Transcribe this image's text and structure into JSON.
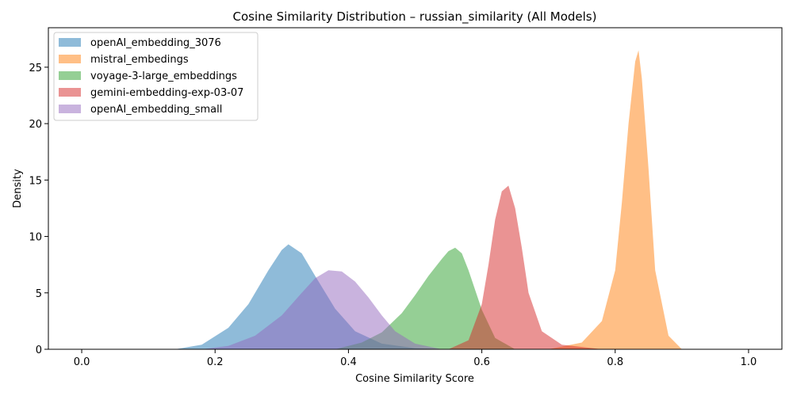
{
  "chart_data": {
    "type": "area",
    "title": "Cosine Similarity Distribution – russian_similarity (All Models)",
    "xlabel": "Cosine Similarity Score",
    "ylabel": "Density",
    "xlim": [
      -0.05,
      1.05
    ],
    "ylim": [
      0,
      28.5
    ],
    "xticks": [
      0.0,
      0.2,
      0.4,
      0.6,
      0.8,
      1.0
    ],
    "xtick_labels": [
      "0.0",
      "0.2",
      "0.4",
      "0.6",
      "0.8",
      "1.0"
    ],
    "yticks": [
      0,
      5,
      10,
      15,
      20,
      25
    ],
    "ytick_labels": [
      "0",
      "5",
      "10",
      "15",
      "20",
      "25"
    ],
    "legend_position": "top-left",
    "grid": false,
    "series": [
      {
        "name": "openAI_embedding_3076",
        "color": "#1f77b4",
        "x": [
          0.14,
          0.18,
          0.22,
          0.25,
          0.28,
          0.3,
          0.31,
          0.33,
          0.35,
          0.38,
          0.41,
          0.45,
          0.5,
          0.55
        ],
        "y": [
          0.0,
          0.4,
          1.9,
          4.0,
          7.0,
          8.8,
          9.3,
          8.5,
          6.5,
          3.6,
          1.6,
          0.5,
          0.1,
          0.0
        ]
      },
      {
        "name": "mistral_embedings",
        "color": "#ff7f0e",
        "x": [
          0.7,
          0.75,
          0.78,
          0.8,
          0.81,
          0.82,
          0.83,
          0.835,
          0.84,
          0.85,
          0.86,
          0.88,
          0.9
        ],
        "y": [
          0.0,
          0.6,
          2.5,
          7.0,
          13.0,
          20.0,
          25.5,
          26.5,
          24.0,
          16.0,
          7.0,
          1.2,
          0.0
        ]
      },
      {
        "name": "voyage-3-large_embeddings",
        "color": "#2ca02c",
        "x": [
          0.38,
          0.42,
          0.45,
          0.48,
          0.5,
          0.52,
          0.54,
          0.55,
          0.56,
          0.57,
          0.58,
          0.6,
          0.62,
          0.65
        ],
        "y": [
          0.0,
          0.6,
          1.5,
          3.2,
          4.8,
          6.5,
          8.0,
          8.7,
          9.0,
          8.5,
          7.0,
          3.5,
          1.0,
          0.0
        ]
      },
      {
        "name": "gemini-embedding-exp-03-07",
        "color": "#d62728",
        "x": [
          0.55,
          0.58,
          0.6,
          0.61,
          0.62,
          0.63,
          0.64,
          0.65,
          0.66,
          0.67,
          0.69,
          0.72,
          0.78
        ],
        "y": [
          0.0,
          0.8,
          4.0,
          7.5,
          11.5,
          14.0,
          14.5,
          12.5,
          9.0,
          5.0,
          1.6,
          0.4,
          0.0
        ]
      },
      {
        "name": "openAI_embedding_small",
        "color": "#9467bd",
        "x": [
          0.18,
          0.22,
          0.26,
          0.3,
          0.33,
          0.35,
          0.37,
          0.39,
          0.41,
          0.43,
          0.45,
          0.47,
          0.5,
          0.54
        ],
        "y": [
          0.0,
          0.3,
          1.2,
          3.0,
          5.0,
          6.3,
          7.0,
          6.9,
          6.0,
          4.6,
          3.0,
          1.6,
          0.5,
          0.0
        ]
      }
    ]
  }
}
